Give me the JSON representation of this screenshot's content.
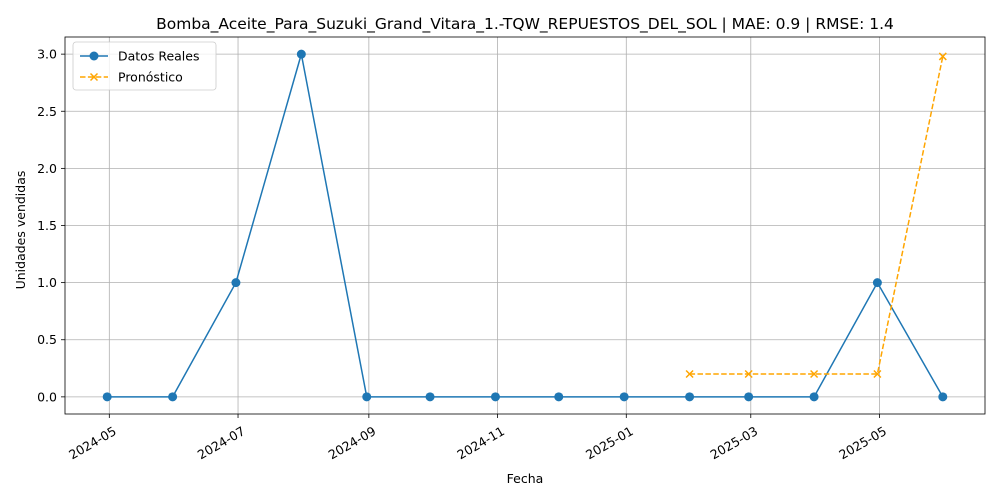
{
  "chart_data": {
    "type": "line",
    "title": "Bomba_Aceite_Para_Suzuki_Grand_Vitara_1.-TQW_REPUESTOS_DEL_SOL | MAE: 0.9 | RMSE: 1.4",
    "xlabel": "Fecha",
    "ylabel": "Unidades vendidas",
    "x_type": "date",
    "ylim": [
      -0.15,
      3.15
    ],
    "xlim": [
      "2024-04-10",
      "2025-06-20"
    ],
    "grid": true,
    "legend_position": "top-left",
    "x_ticks": [
      "2024-05",
      "2024-07",
      "2024-09",
      "2024-11",
      "2025-01",
      "2025-03",
      "2025-05"
    ],
    "y_ticks": [
      "0.0",
      "0.5",
      "1.0",
      "1.5",
      "2.0",
      "2.5",
      "3.0"
    ],
    "series": [
      {
        "name": "Datos Reales",
        "color": "#1f77b4",
        "marker": "circle",
        "line_style": "solid",
        "points": [
          {
            "x": "2024-04-30",
            "y": 0
          },
          {
            "x": "2024-05-31",
            "y": 0
          },
          {
            "x": "2024-06-30",
            "y": 1
          },
          {
            "x": "2024-07-31",
            "y": 3
          },
          {
            "x": "2024-08-31",
            "y": 0
          },
          {
            "x": "2024-09-30",
            "y": 0
          },
          {
            "x": "2024-10-31",
            "y": 0
          },
          {
            "x": "2024-11-30",
            "y": 0
          },
          {
            "x": "2024-12-31",
            "y": 0
          },
          {
            "x": "2025-01-31",
            "y": 0
          },
          {
            "x": "2025-02-28",
            "y": 0
          },
          {
            "x": "2025-03-31",
            "y": 0
          },
          {
            "x": "2025-04-30",
            "y": 1
          },
          {
            "x": "2025-05-31",
            "y": 0
          }
        ]
      },
      {
        "name": "Pronóstico",
        "color": "#ffa500",
        "marker": "x",
        "line_style": "dashed",
        "points": [
          {
            "x": "2025-01-31",
            "y": 0.2
          },
          {
            "x": "2025-02-28",
            "y": 0.2
          },
          {
            "x": "2025-03-31",
            "y": 0.2
          },
          {
            "x": "2025-04-30",
            "y": 0.2
          },
          {
            "x": "2025-05-31",
            "y": 2.98
          }
        ]
      }
    ]
  }
}
